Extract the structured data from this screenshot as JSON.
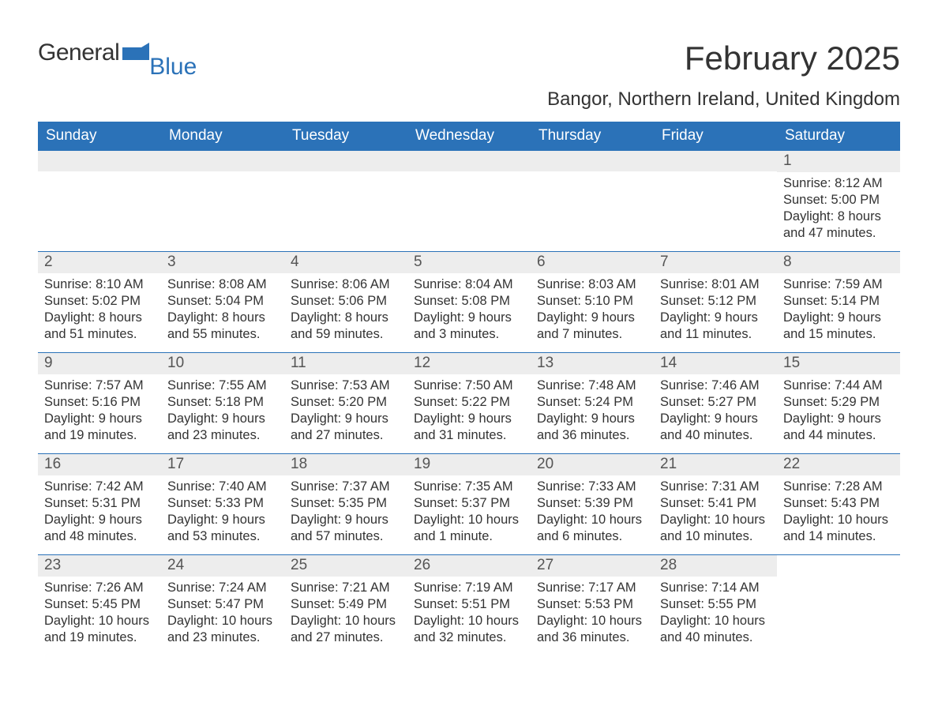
{
  "logo": {
    "text1": "General",
    "text2": "Blue",
    "accent_color": "#2b72b8"
  },
  "title": "February 2025",
  "location": "Bangor, Northern Ireland, United Kingdom",
  "header_bg": "#2b72b8",
  "header_fg": "#ffffff",
  "daybar_bg": "#ededed",
  "text_color": "#333333",
  "row_border": "#2b72b8",
  "dayNames": [
    "Sunday",
    "Monday",
    "Tuesday",
    "Wednesday",
    "Thursday",
    "Friday",
    "Saturday"
  ],
  "weeks": [
    [
      null,
      null,
      null,
      null,
      null,
      null,
      {
        "n": "1",
        "sunrise": "8:12 AM",
        "sunset": "5:00 PM",
        "daylight": "8 hours and 47 minutes."
      }
    ],
    [
      {
        "n": "2",
        "sunrise": "8:10 AM",
        "sunset": "5:02 PM",
        "daylight": "8 hours and 51 minutes."
      },
      {
        "n": "3",
        "sunrise": "8:08 AM",
        "sunset": "5:04 PM",
        "daylight": "8 hours and 55 minutes."
      },
      {
        "n": "4",
        "sunrise": "8:06 AM",
        "sunset": "5:06 PM",
        "daylight": "8 hours and 59 minutes."
      },
      {
        "n": "5",
        "sunrise": "8:04 AM",
        "sunset": "5:08 PM",
        "daylight": "9 hours and 3 minutes."
      },
      {
        "n": "6",
        "sunrise": "8:03 AM",
        "sunset": "5:10 PM",
        "daylight": "9 hours and 7 minutes."
      },
      {
        "n": "7",
        "sunrise": "8:01 AM",
        "sunset": "5:12 PM",
        "daylight": "9 hours and 11 minutes."
      },
      {
        "n": "8",
        "sunrise": "7:59 AM",
        "sunset": "5:14 PM",
        "daylight": "9 hours and 15 minutes."
      }
    ],
    [
      {
        "n": "9",
        "sunrise": "7:57 AM",
        "sunset": "5:16 PM",
        "daylight": "9 hours and 19 minutes."
      },
      {
        "n": "10",
        "sunrise": "7:55 AM",
        "sunset": "5:18 PM",
        "daylight": "9 hours and 23 minutes."
      },
      {
        "n": "11",
        "sunrise": "7:53 AM",
        "sunset": "5:20 PM",
        "daylight": "9 hours and 27 minutes."
      },
      {
        "n": "12",
        "sunrise": "7:50 AM",
        "sunset": "5:22 PM",
        "daylight": "9 hours and 31 minutes."
      },
      {
        "n": "13",
        "sunrise": "7:48 AM",
        "sunset": "5:24 PM",
        "daylight": "9 hours and 36 minutes."
      },
      {
        "n": "14",
        "sunrise": "7:46 AM",
        "sunset": "5:27 PM",
        "daylight": "9 hours and 40 minutes."
      },
      {
        "n": "15",
        "sunrise": "7:44 AM",
        "sunset": "5:29 PM",
        "daylight": "9 hours and 44 minutes."
      }
    ],
    [
      {
        "n": "16",
        "sunrise": "7:42 AM",
        "sunset": "5:31 PM",
        "daylight": "9 hours and 48 minutes."
      },
      {
        "n": "17",
        "sunrise": "7:40 AM",
        "sunset": "5:33 PM",
        "daylight": "9 hours and 53 minutes."
      },
      {
        "n": "18",
        "sunrise": "7:37 AM",
        "sunset": "5:35 PM",
        "daylight": "9 hours and 57 minutes."
      },
      {
        "n": "19",
        "sunrise": "7:35 AM",
        "sunset": "5:37 PM",
        "daylight": "10 hours and 1 minute."
      },
      {
        "n": "20",
        "sunrise": "7:33 AM",
        "sunset": "5:39 PM",
        "daylight": "10 hours and 6 minutes."
      },
      {
        "n": "21",
        "sunrise": "7:31 AM",
        "sunset": "5:41 PM",
        "daylight": "10 hours and 10 minutes."
      },
      {
        "n": "22",
        "sunrise": "7:28 AM",
        "sunset": "5:43 PM",
        "daylight": "10 hours and 14 minutes."
      }
    ],
    [
      {
        "n": "23",
        "sunrise": "7:26 AM",
        "sunset": "5:45 PM",
        "daylight": "10 hours and 19 minutes."
      },
      {
        "n": "24",
        "sunrise": "7:24 AM",
        "sunset": "5:47 PM",
        "daylight": "10 hours and 23 minutes."
      },
      {
        "n": "25",
        "sunrise": "7:21 AM",
        "sunset": "5:49 PM",
        "daylight": "10 hours and 27 minutes."
      },
      {
        "n": "26",
        "sunrise": "7:19 AM",
        "sunset": "5:51 PM",
        "daylight": "10 hours and 32 minutes."
      },
      {
        "n": "27",
        "sunrise": "7:17 AM",
        "sunset": "5:53 PM",
        "daylight": "10 hours and 36 minutes."
      },
      {
        "n": "28",
        "sunrise": "7:14 AM",
        "sunset": "5:55 PM",
        "daylight": "10 hours and 40 minutes."
      },
      null
    ]
  ],
  "labels": {
    "sunrise": "Sunrise: ",
    "sunset": "Sunset: ",
    "daylight": "Daylight: "
  }
}
